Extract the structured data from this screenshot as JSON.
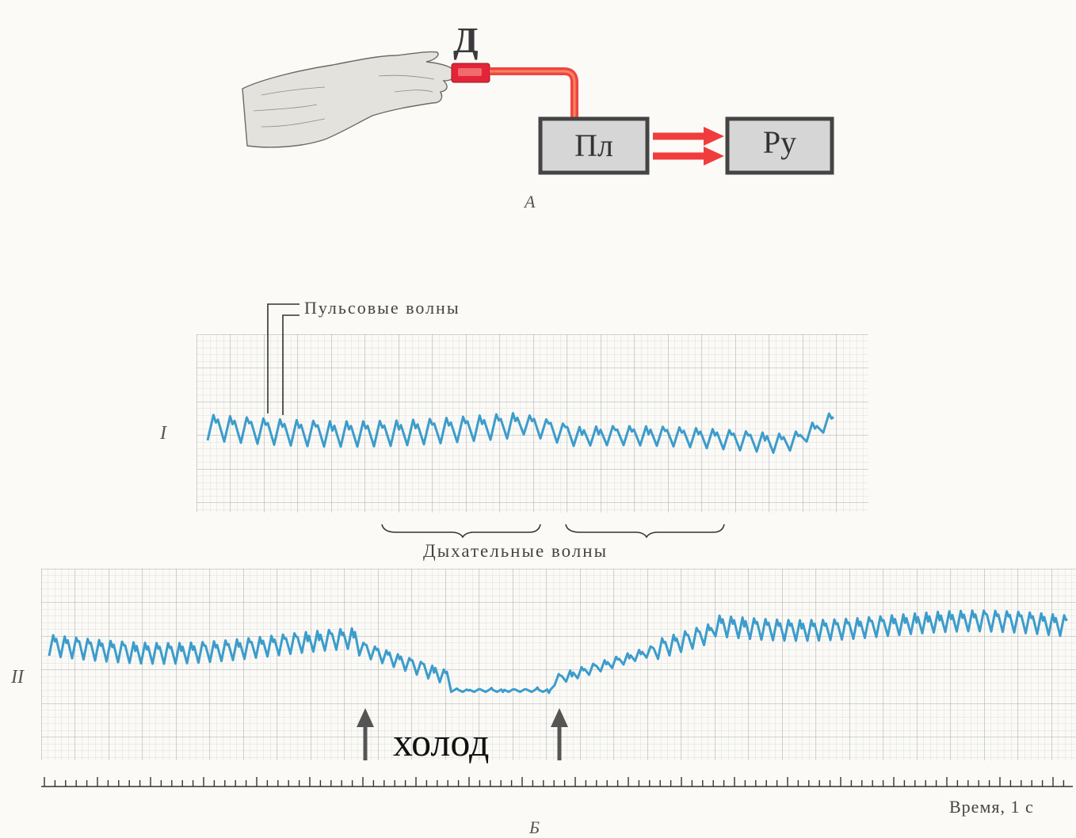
{
  "part_a": {
    "sensor_label": "Д",
    "box_pl": "Пл",
    "box_ru": "Ру",
    "caption": "А"
  },
  "part_b": {
    "pulse_label": "Пульсовые волны",
    "breath_label": "Дыхательные волны",
    "trace_1_label": "I",
    "trace_2_label": "II",
    "stimulus_label": "холод",
    "time_label": "Время, 1 с",
    "caption": "Б"
  },
  "colors": {
    "trace": "#3c9ccc",
    "grid": "#c4c7c4",
    "box_fill": "#d6d6d6",
    "box_border": "#444444",
    "cable": "#ee3b3b",
    "arrow": "#555555"
  }
}
